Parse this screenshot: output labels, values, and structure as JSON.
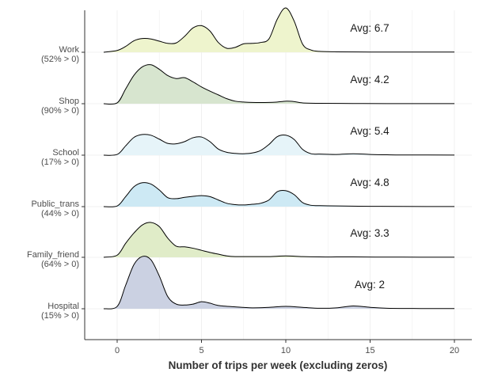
{
  "chart_data": {
    "type": "ridgeline",
    "xlabel": "Number of trips per week (excluding zeros)",
    "ylabel": "",
    "xlim": [
      -1.9,
      21
    ],
    "xticks": [
      0,
      5,
      10,
      15,
      20
    ],
    "grid": true,
    "legend": "none",
    "series": [
      {
        "name": "Work",
        "share_label": "(52% > 0)",
        "avg_label": "Avg: 6.7",
        "color": "#eef4cd",
        "density": {
          "x": [
            -0.8,
            0,
            0.5,
            1,
            1.5,
            2,
            2.5,
            3,
            3.5,
            4,
            4.5,
            5,
            5.5,
            6,
            6.5,
            7,
            7.5,
            8,
            8.5,
            9,
            9.5,
            10,
            10.5,
            11,
            11.5,
            12,
            13,
            15,
            17,
            20
          ],
          "y": [
            0,
            0.04,
            0.13,
            0.26,
            0.31,
            0.3,
            0.25,
            0.2,
            0.21,
            0.36,
            0.55,
            0.6,
            0.48,
            0.22,
            0.09,
            0.11,
            0.19,
            0.2,
            0.22,
            0.3,
            0.75,
            1.0,
            0.7,
            0.18,
            0.05,
            0.02,
            0.01,
            0.005,
            0.004,
            0.004
          ]
        }
      },
      {
        "name": "Shop",
        "share_label": "(90% > 0)",
        "avg_label": "Avg: 4.2",
        "color": "#d7e5cf",
        "density": {
          "x": [
            -0.8,
            0,
            0.5,
            1,
            1.5,
            2,
            2.5,
            3,
            3.5,
            4,
            4.5,
            5,
            5.5,
            6,
            6.5,
            7,
            7.5,
            8,
            9,
            9.5,
            10,
            10.5,
            11,
            12,
            14,
            16,
            20
          ],
          "y": [
            0,
            0.02,
            0.35,
            0.68,
            0.88,
            0.93,
            0.82,
            0.67,
            0.6,
            0.62,
            0.52,
            0.4,
            0.3,
            0.21,
            0.12,
            0.06,
            0.04,
            0.03,
            0.03,
            0.04,
            0.06,
            0.05,
            0.02,
            0.01,
            0.005,
            0.003,
            0.002
          ]
        }
      },
      {
        "name": "School",
        "share_label": "(17% > 0)",
        "avg_label": "Avg: 5.4",
        "color": "#e6f4f9",
        "density": {
          "x": [
            -0.8,
            0,
            0.5,
            1,
            1.5,
            2,
            2.5,
            3,
            3.5,
            4,
            4.5,
            5,
            5.5,
            6,
            6.5,
            7,
            7.5,
            8,
            8.5,
            9,
            9.5,
            10,
            10.5,
            11,
            11.5,
            12,
            13,
            14,
            15,
            16,
            17,
            20
          ],
          "y": [
            0,
            0.02,
            0.26,
            0.5,
            0.58,
            0.56,
            0.45,
            0.33,
            0.32,
            0.38,
            0.49,
            0.51,
            0.38,
            0.17,
            0.08,
            0.05,
            0.04,
            0.06,
            0.13,
            0.3,
            0.52,
            0.56,
            0.44,
            0.16,
            0.04,
            0.03,
            0.02,
            0.04,
            0.02,
            0.01,
            0.005,
            0.004
          ]
        }
      },
      {
        "name": "Public_trans",
        "share_label": "(44% > 0)",
        "avg_label": "Avg: 4.8",
        "color": "#cde9f4",
        "density": {
          "x": [
            -0.8,
            0,
            0.5,
            1,
            1.5,
            2,
            2.5,
            3,
            3.5,
            4,
            4.5,
            5,
            5.5,
            6,
            6.5,
            7,
            7.5,
            8,
            8.5,
            9,
            9.5,
            10,
            10.5,
            11,
            11.5,
            12,
            13,
            15,
            17,
            20
          ],
          "y": [
            0,
            0.02,
            0.3,
            0.6,
            0.72,
            0.68,
            0.5,
            0.27,
            0.24,
            0.28,
            0.31,
            0.33,
            0.3,
            0.2,
            0.1,
            0.06,
            0.05,
            0.07,
            0.1,
            0.2,
            0.45,
            0.48,
            0.36,
            0.12,
            0.04,
            0.03,
            0.02,
            0.01,
            0.005,
            0.004
          ]
        }
      },
      {
        "name": "Family_friend",
        "share_label": "(64% > 0)",
        "avg_label": "Avg: 3.3",
        "color": "#e0ecc8",
        "density": {
          "x": [
            -0.8,
            0,
            0.5,
            1,
            1.5,
            2,
            2.5,
            3,
            3.5,
            4,
            4.5,
            5,
            5.5,
            6,
            6.5,
            7,
            8,
            9,
            10,
            11,
            12,
            13,
            14,
            16,
            18,
            20
          ],
          "y": [
            0,
            0.06,
            0.4,
            0.7,
            0.93,
            1.0,
            0.88,
            0.55,
            0.32,
            0.3,
            0.26,
            0.2,
            0.14,
            0.09,
            0.04,
            0.02,
            0.02,
            0.02,
            0.04,
            0.02,
            0.01,
            0.01,
            0.01,
            0.005,
            0.004,
            0.004
          ]
        }
      },
      {
        "name": "Hospital",
        "share_label": "(15% > 0)",
        "avg_label": "Avg: 2",
        "color": "#cbd1e2",
        "density": {
          "x": [
            -0.8,
            0,
            0.5,
            1,
            1.5,
            2,
            2.5,
            3,
            3.5,
            4,
            4.5,
            5,
            5.5,
            6,
            7,
            8,
            9,
            10,
            11,
            12,
            13,
            14,
            15,
            16,
            18,
            20
          ],
          "y": [
            0,
            0.05,
            0.5,
            0.95,
            1.12,
            1.05,
            0.7,
            0.26,
            0.1,
            0.08,
            0.1,
            0.15,
            0.12,
            0.07,
            0.04,
            0.02,
            0.03,
            0.05,
            0.03,
            0.01,
            0.02,
            0.06,
            0.03,
            0.01,
            0.005,
            0.004
          ]
        }
      }
    ]
  }
}
